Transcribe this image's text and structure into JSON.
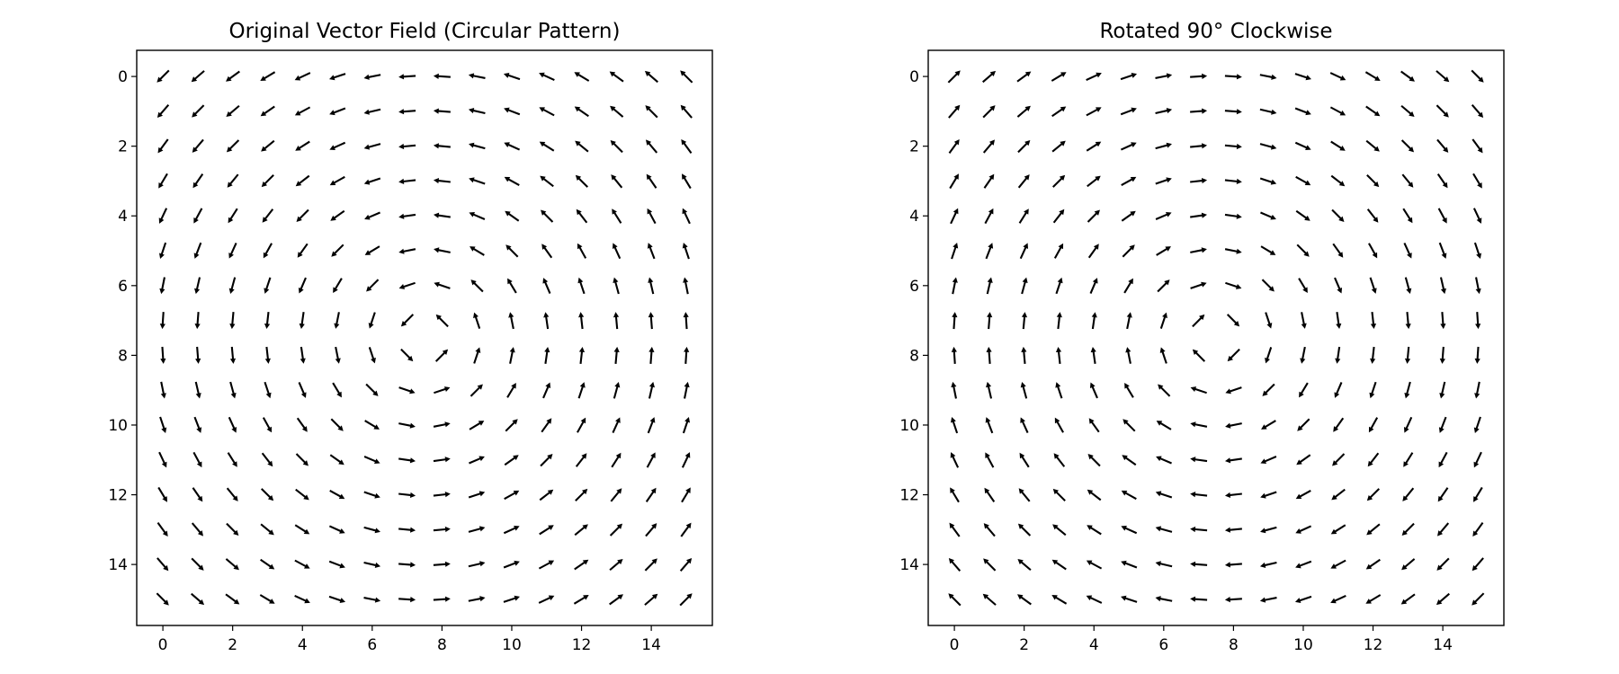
{
  "chart_data": [
    {
      "type": "quiver",
      "title": "Original Vector Field (Circular Pattern)",
      "field": "circular",
      "grid_size": 16,
      "center": [
        7.5,
        7.5
      ],
      "x_axis": {
        "range": [
          -0.75,
          15.75
        ],
        "ticks": [
          0,
          2,
          4,
          6,
          8,
          10,
          12,
          14
        ]
      },
      "y_axis": {
        "range": [
          -0.75,
          15.75
        ],
        "inverted": true,
        "ticks": [
          0,
          2,
          4,
          6,
          8,
          10,
          12,
          14
        ]
      },
      "grid": false,
      "arrow_color": "#000000"
    },
    {
      "type": "quiver",
      "title": "Rotated 90° Clockwise",
      "field": "circular_rotated_90_cw",
      "grid_size": 16,
      "center": [
        7.5,
        7.5
      ],
      "x_axis": {
        "range": [
          -0.75,
          15.75
        ],
        "ticks": [
          0,
          2,
          4,
          6,
          8,
          10,
          12,
          14
        ]
      },
      "y_axis": {
        "range": [
          -0.75,
          15.75
        ],
        "inverted": true,
        "ticks": [
          0,
          2,
          4,
          6,
          8,
          10,
          12,
          14
        ]
      },
      "grid": false,
      "arrow_color": "#000000"
    }
  ]
}
